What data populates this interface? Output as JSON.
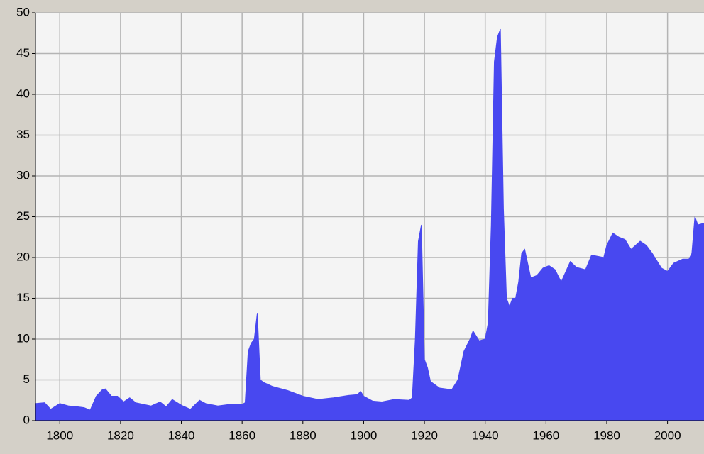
{
  "chart_data": {
    "type": "area",
    "color": "#4848f0",
    "grid": true,
    "xlim": [
      1792,
      2012
    ],
    "ylim": [
      0,
      50
    ],
    "xticks": [
      1800,
      1820,
      1840,
      1860,
      1880,
      1900,
      1920,
      1940,
      1960,
      1980,
      2000
    ],
    "yticks": [
      0,
      5,
      10,
      15,
      20,
      25,
      30,
      35,
      40,
      45,
      50
    ],
    "x": [
      1792,
      1795,
      1797,
      1800,
      1803,
      1806,
      1808,
      1810,
      1812,
      1814,
      1815,
      1817,
      1819,
      1821,
      1823,
      1825,
      1830,
      1833,
      1835,
      1837,
      1840,
      1843,
      1846,
      1848,
      1852,
      1856,
      1860,
      1861,
      1862,
      1863,
      1864,
      1865,
      1866,
      1867,
      1870,
      1875,
      1880,
      1885,
      1890,
      1895,
      1898,
      1899,
      1900,
      1903,
      1906,
      1910,
      1915,
      1916,
      1917,
      1918,
      1919,
      1920,
      1921,
      1922,
      1925,
      1929,
      1931,
      1933,
      1935,
      1936,
      1938,
      1940,
      1941,
      1942,
      1943,
      1944,
      1945,
      1946,
      1947,
      1948,
      1949,
      1950,
      1951,
      1952,
      1953,
      1955,
      1957,
      1959,
      1961,
      1963,
      1965,
      1968,
      1970,
      1973,
      1975,
      1979,
      1980,
      1982,
      1984,
      1986,
      1988,
      1991,
      1993,
      1995,
      1998,
      2000,
      2002,
      2005,
      2007,
      2008,
      2009,
      2010,
      2012
    ],
    "values": [
      2.1,
      2.2,
      1.4,
      2.1,
      1.8,
      1.7,
      1.6,
      1.3,
      3.0,
      3.8,
      3.9,
      3.0,
      3.0,
      2.3,
      2.8,
      2.2,
      1.8,
      2.3,
      1.7,
      2.6,
      1.9,
      1.4,
      2.5,
      2.1,
      1.8,
      2.0,
      2.0,
      2.2,
      8.5,
      9.5,
      10,
      13.2,
      5.0,
      4.7,
      4.2,
      3.7,
      3.0,
      2.6,
      2.8,
      3.1,
      3.2,
      3.6,
      3.0,
      2.4,
      2.3,
      2.6,
      2.5,
      2.8,
      10,
      22,
      24,
      7.5,
      6.5,
      4.8,
      4.0,
      3.8,
      5.0,
      8.5,
      10,
      11,
      9.8,
      10,
      12,
      24,
      44,
      47,
      48,
      26,
      15,
      14,
      15,
      15,
      17,
      20.5,
      21,
      17.5,
      17.8,
      18.7,
      19,
      18.5,
      17,
      19.5,
      18.8,
      18.5,
      20.3,
      20,
      21.5,
      23,
      22.5,
      22.2,
      21,
      22,
      21.5,
      20.5,
      18.7,
      18.3,
      19.3,
      19.8,
      19.8,
      20.5,
      25,
      24,
      24.2
    ]
  }
}
